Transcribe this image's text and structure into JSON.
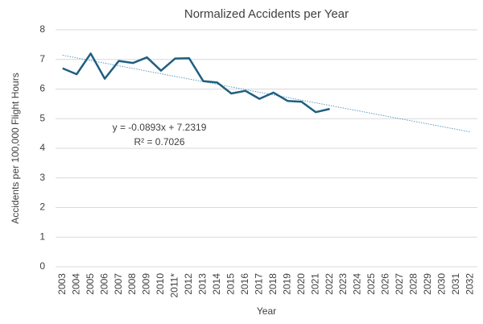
{
  "chart_data": {
    "type": "line",
    "title": "Normalized Accidents per Year",
    "x_label": "Year",
    "y_label": "Accidents per 100,000 Flight Hours",
    "categories": [
      "2003",
      "2004",
      "2005",
      "2006",
      "2007",
      "2008",
      "2009",
      "2010",
      "2011*",
      "2012",
      "2013",
      "2014",
      "2015",
      "2016",
      "2017",
      "2018",
      "2019",
      "2020",
      "2021",
      "2022",
      "2023",
      "2024",
      "2025",
      "2026",
      "2027",
      "2028",
      "2029",
      "2030",
      "2031",
      "2032"
    ],
    "series": [
      {
        "name": "Normalized Accidents",
        "color": "#1f5f80",
        "values": [
          6.7,
          6.5,
          7.2,
          6.35,
          6.95,
          6.88,
          7.07,
          6.62,
          7.03,
          7.04,
          6.27,
          6.22,
          5.85,
          5.94,
          5.67,
          5.88,
          5.6,
          5.57,
          5.22,
          5.33,
          null,
          null,
          null,
          null,
          null,
          null,
          null,
          null,
          null,
          null
        ]
      }
    ],
    "trendline": {
      "slope": -0.0893,
      "intercept": 7.2319,
      "color": "#5b9bc0",
      "equation": "y = -0.0893x + 7.2319",
      "r2_label": "R² = 0.7026"
    },
    "ylim": [
      0,
      8
    ],
    "yticks": [
      0,
      1,
      2,
      3,
      4,
      5,
      6,
      7,
      8
    ],
    "grid": true
  }
}
